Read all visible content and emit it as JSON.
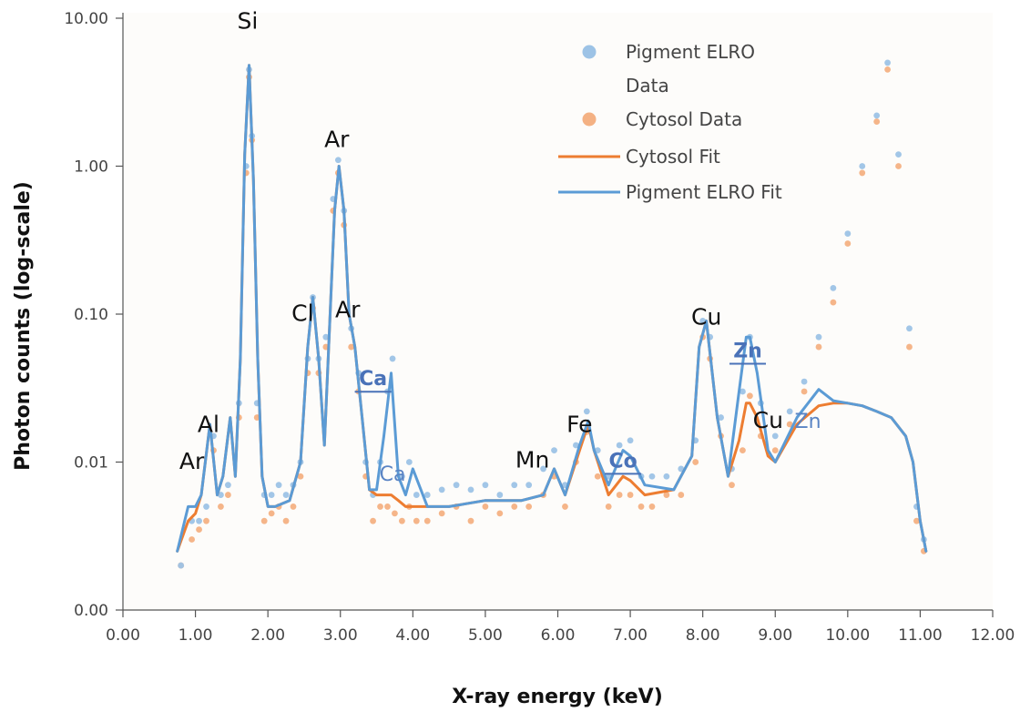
{
  "chart_data": {
    "type": "scatter",
    "xlabel": "X-ray energy (keV)",
    "ylabel": "Photon counts (log-scale)",
    "xlim": [
      0,
      12
    ],
    "ylim": [
      0.001,
      10
    ],
    "y_scale": "log",
    "x_ticks": [
      "0.00",
      "1.00",
      "2.00",
      "3.00",
      "4.00",
      "5.00",
      "6.00",
      "7.00",
      "8.00",
      "9.00",
      "10.00",
      "11.00",
      "12.00"
    ],
    "y_ticks": [
      {
        "value": 0.001,
        "label": "0.00"
      },
      {
        "value": 0.01,
        "label": "0.01"
      },
      {
        "value": 0.1,
        "label": "0.10"
      },
      {
        "value": 1,
        "label": "1.00"
      },
      {
        "value": 10,
        "label": "10.00"
      }
    ],
    "legend_position": "top-right",
    "legend": [
      {
        "label": "Pigment ELRO",
        "label2": "Data",
        "kind": "marker",
        "color": "#9dc3e6"
      },
      {
        "label": "Cytosol Data",
        "kind": "marker",
        "color": "#f4b183"
      },
      {
        "label": "Cytosol Fit",
        "kind": "line",
        "color": "#ed7d31"
      },
      {
        "label": "Pigment ELRO Fit",
        "kind": "line",
        "color": "#5b9bd5"
      }
    ],
    "series": [
      {
        "name": "Cytosol Fit",
        "kind": "line",
        "color": "#ed7d31",
        "x": [
          0.75,
          0.9,
          1.0,
          1.08,
          1.2,
          1.3,
          1.38,
          1.48,
          1.55,
          1.62,
          1.68,
          1.74,
          1.8,
          1.86,
          1.92,
          2.0,
          2.1,
          2.3,
          2.45,
          2.55,
          2.62,
          2.7,
          2.78,
          2.85,
          2.92,
          2.98,
          3.05,
          3.12,
          3.2,
          3.3,
          3.4,
          3.5,
          3.6,
          3.7,
          3.8,
          3.9,
          4.0,
          4.2,
          4.5,
          5.0,
          5.5,
          5.8,
          5.95,
          6.1,
          6.3,
          6.42,
          6.5,
          6.7,
          6.9,
          7.0,
          7.2,
          7.6,
          7.85,
          7.95,
          8.05,
          8.2,
          8.35,
          8.5,
          8.6,
          8.65,
          8.75,
          8.9,
          9.0,
          9.3,
          9.6,
          9.8,
          10.0,
          10.2,
          10.4,
          10.6,
          10.8,
          10.9,
          11.0,
          11.08
        ],
        "y": [
          0.0025,
          0.004,
          0.0045,
          0.006,
          0.018,
          0.006,
          0.008,
          0.02,
          0.008,
          0.05,
          1.2,
          4.8,
          0.8,
          0.05,
          0.008,
          0.005,
          0.005,
          0.0055,
          0.01,
          0.06,
          0.13,
          0.05,
          0.013,
          0.08,
          0.5,
          1.0,
          0.5,
          0.1,
          0.06,
          0.02,
          0.0065,
          0.006,
          0.006,
          0.006,
          0.0055,
          0.005,
          0.005,
          0.005,
          0.005,
          0.0055,
          0.0055,
          0.006,
          0.009,
          0.006,
          0.012,
          0.018,
          0.012,
          0.006,
          0.008,
          0.0075,
          0.006,
          0.0065,
          0.011,
          0.06,
          0.09,
          0.02,
          0.008,
          0.014,
          0.025,
          0.025,
          0.02,
          0.011,
          0.01,
          0.018,
          0.024,
          0.025,
          0.025,
          0.024,
          0.022,
          0.02,
          0.015,
          0.01,
          0.004,
          0.0025
        ]
      },
      {
        "name": "Pigment ELRO Fit",
        "kind": "line",
        "color": "#5b9bd5",
        "x": [
          0.75,
          0.9,
          1.0,
          1.08,
          1.2,
          1.3,
          1.38,
          1.48,
          1.55,
          1.62,
          1.68,
          1.74,
          1.8,
          1.86,
          1.92,
          2.0,
          2.1,
          2.3,
          2.45,
          2.55,
          2.62,
          2.7,
          2.78,
          2.85,
          2.92,
          2.98,
          3.05,
          3.12,
          3.2,
          3.3,
          3.4,
          3.5,
          3.6,
          3.7,
          3.8,
          3.9,
          4.0,
          4.2,
          4.5,
          5.0,
          5.5,
          5.8,
          5.95,
          6.1,
          6.3,
          6.42,
          6.5,
          6.7,
          6.9,
          7.0,
          7.2,
          7.6,
          7.85,
          7.95,
          8.05,
          8.2,
          8.35,
          8.5,
          8.6,
          8.65,
          8.75,
          8.9,
          9.0,
          9.3,
          9.6,
          9.8,
          10.0,
          10.2,
          10.4,
          10.6,
          10.8,
          10.9,
          11.0,
          11.08
        ],
        "y": [
          0.0025,
          0.005,
          0.005,
          0.006,
          0.018,
          0.006,
          0.008,
          0.02,
          0.008,
          0.05,
          1.2,
          4.8,
          0.8,
          0.05,
          0.008,
          0.005,
          0.005,
          0.0055,
          0.01,
          0.06,
          0.13,
          0.05,
          0.013,
          0.08,
          0.5,
          1.0,
          0.5,
          0.1,
          0.06,
          0.02,
          0.0065,
          0.0065,
          0.015,
          0.04,
          0.008,
          0.006,
          0.009,
          0.005,
          0.005,
          0.0055,
          0.0055,
          0.006,
          0.009,
          0.006,
          0.013,
          0.019,
          0.012,
          0.007,
          0.012,
          0.011,
          0.007,
          0.0065,
          0.011,
          0.06,
          0.09,
          0.02,
          0.008,
          0.03,
          0.07,
          0.07,
          0.04,
          0.012,
          0.01,
          0.02,
          0.031,
          0.026,
          0.025,
          0.024,
          0.022,
          0.02,
          0.015,
          0.01,
          0.004,
          0.0025
        ]
      },
      {
        "name": "Cytosol Data",
        "kind": "scatter",
        "color": "#f4b183",
        "x": [
          0.8,
          0.95,
          1.05,
          1.15,
          1.25,
          1.35,
          1.45,
          1.6,
          1.7,
          1.74,
          1.78,
          1.85,
          1.95,
          2.05,
          2.15,
          2.25,
          2.35,
          2.45,
          2.55,
          2.62,
          2.7,
          2.8,
          2.9,
          2.97,
          3.05,
          3.15,
          3.25,
          3.35,
          3.45,
          3.55,
          3.65,
          3.75,
          3.85,
          3.95,
          4.05,
          4.2,
          4.4,
          4.6,
          4.8,
          5.0,
          5.2,
          5.4,
          5.6,
          5.8,
          5.95,
          6.1,
          6.25,
          6.4,
          6.55,
          6.7,
          6.85,
          7.0,
          7.15,
          7.3,
          7.5,
          7.7,
          7.9,
          8.0,
          8.1,
          8.25,
          8.4,
          8.55,
          8.65,
          8.8,
          9.0,
          9.2,
          9.4,
          9.6,
          9.8,
          10.0,
          10.2,
          10.4,
          10.55,
          10.7,
          10.85,
          10.95,
          11.05
        ],
        "y": [
          0.002,
          0.003,
          0.0035,
          0.004,
          0.012,
          0.005,
          0.006,
          0.02,
          0.9,
          4.0,
          1.5,
          0.02,
          0.004,
          0.0045,
          0.005,
          0.004,
          0.005,
          0.008,
          0.04,
          0.11,
          0.04,
          0.06,
          0.5,
          0.9,
          0.4,
          0.06,
          0.03,
          0.008,
          0.004,
          0.005,
          0.005,
          0.0045,
          0.004,
          0.005,
          0.004,
          0.004,
          0.0045,
          0.005,
          0.004,
          0.005,
          0.0045,
          0.005,
          0.005,
          0.006,
          0.008,
          0.005,
          0.01,
          0.016,
          0.008,
          0.005,
          0.006,
          0.006,
          0.005,
          0.005,
          0.006,
          0.006,
          0.01,
          0.07,
          0.05,
          0.015,
          0.007,
          0.012,
          0.028,
          0.015,
          0.012,
          0.018,
          0.03,
          0.06,
          0.12,
          0.3,
          0.9,
          2.0,
          4.5,
          1.0,
          0.06,
          0.004,
          0.0025
        ]
      },
      {
        "name": "Pigment ELRO Data",
        "kind": "scatter",
        "color": "#9dc3e6",
        "x": [
          0.8,
          0.95,
          1.05,
          1.15,
          1.25,
          1.35,
          1.45,
          1.6,
          1.7,
          1.74,
          1.78,
          1.85,
          1.95,
          2.05,
          2.15,
          2.25,
          2.35,
          2.45,
          2.55,
          2.62,
          2.7,
          2.8,
          2.9,
          2.97,
          3.05,
          3.15,
          3.25,
          3.35,
          3.45,
          3.55,
          3.65,
          3.72,
          3.85,
          3.95,
          4.05,
          4.2,
          4.4,
          4.6,
          4.8,
          5.0,
          5.2,
          5.4,
          5.6,
          5.8,
          5.95,
          6.1,
          6.25,
          6.4,
          6.55,
          6.7,
          6.85,
          7.0,
          7.15,
          7.3,
          7.5,
          7.7,
          7.9,
          8.0,
          8.1,
          8.25,
          8.4,
          8.55,
          8.65,
          8.8,
          9.0,
          9.2,
          9.4,
          9.6,
          9.8,
          10.0,
          10.2,
          10.4,
          10.55,
          10.7,
          10.85,
          10.95,
          11.05
        ],
        "y": [
          0.002,
          0.004,
          0.004,
          0.005,
          0.015,
          0.006,
          0.007,
          0.025,
          1.0,
          4.5,
          1.6,
          0.025,
          0.006,
          0.006,
          0.007,
          0.006,
          0.007,
          0.01,
          0.05,
          0.13,
          0.05,
          0.07,
          0.6,
          1.1,
          0.5,
          0.08,
          0.04,
          0.01,
          0.006,
          0.01,
          0.03,
          0.05,
          0.008,
          0.01,
          0.006,
          0.006,
          0.0065,
          0.007,
          0.0065,
          0.007,
          0.006,
          0.007,
          0.007,
          0.009,
          0.012,
          0.007,
          0.013,
          0.022,
          0.012,
          0.008,
          0.013,
          0.014,
          0.008,
          0.008,
          0.008,
          0.009,
          0.014,
          0.09,
          0.07,
          0.02,
          0.009,
          0.03,
          0.07,
          0.025,
          0.015,
          0.022,
          0.035,
          0.07,
          0.15,
          0.35,
          1.0,
          2.2,
          5.0,
          1.2,
          0.08,
          0.005,
          0.003
        ]
      }
    ],
    "annotations": [
      {
        "text": "Ar",
        "x": 0.95,
        "y": 0.009,
        "style": "black"
      },
      {
        "text": "Al",
        "x": 1.18,
        "y": 0.016,
        "style": "black"
      },
      {
        "text": "Si",
        "x": 1.72,
        "y": 8.5,
        "style": "black"
      },
      {
        "text": "Cl",
        "x": 2.48,
        "y": 0.09,
        "style": "black"
      },
      {
        "text": "Ar",
        "x": 2.95,
        "y": 1.35,
        "style": "black"
      },
      {
        "text": "Ar",
        "x": 3.1,
        "y": 0.095,
        "style": "black"
      },
      {
        "text": "Ca",
        "x": 3.45,
        "y": 0.033,
        "style": "bold-blue"
      },
      {
        "text": "Ca",
        "x": 3.72,
        "y": 0.0075,
        "style": "blue"
      },
      {
        "text": "Mn",
        "x": 5.65,
        "y": 0.0092,
        "style": "black"
      },
      {
        "text": "Fe",
        "x": 6.3,
        "y": 0.016,
        "style": "black"
      },
      {
        "text": "Co",
        "x": 6.9,
        "y": 0.0092,
        "style": "bold-blue"
      },
      {
        "text": "Cu",
        "x": 8.05,
        "y": 0.085,
        "style": "black"
      },
      {
        "text": "Zn",
        "x": 8.62,
        "y": 0.051,
        "style": "bold-blue"
      },
      {
        "text": "Cu",
        "x": 8.9,
        "y": 0.017,
        "style": "black"
      },
      {
        "text": "Zn",
        "x": 9.45,
        "y": 0.017,
        "style": "blue"
      }
    ]
  }
}
